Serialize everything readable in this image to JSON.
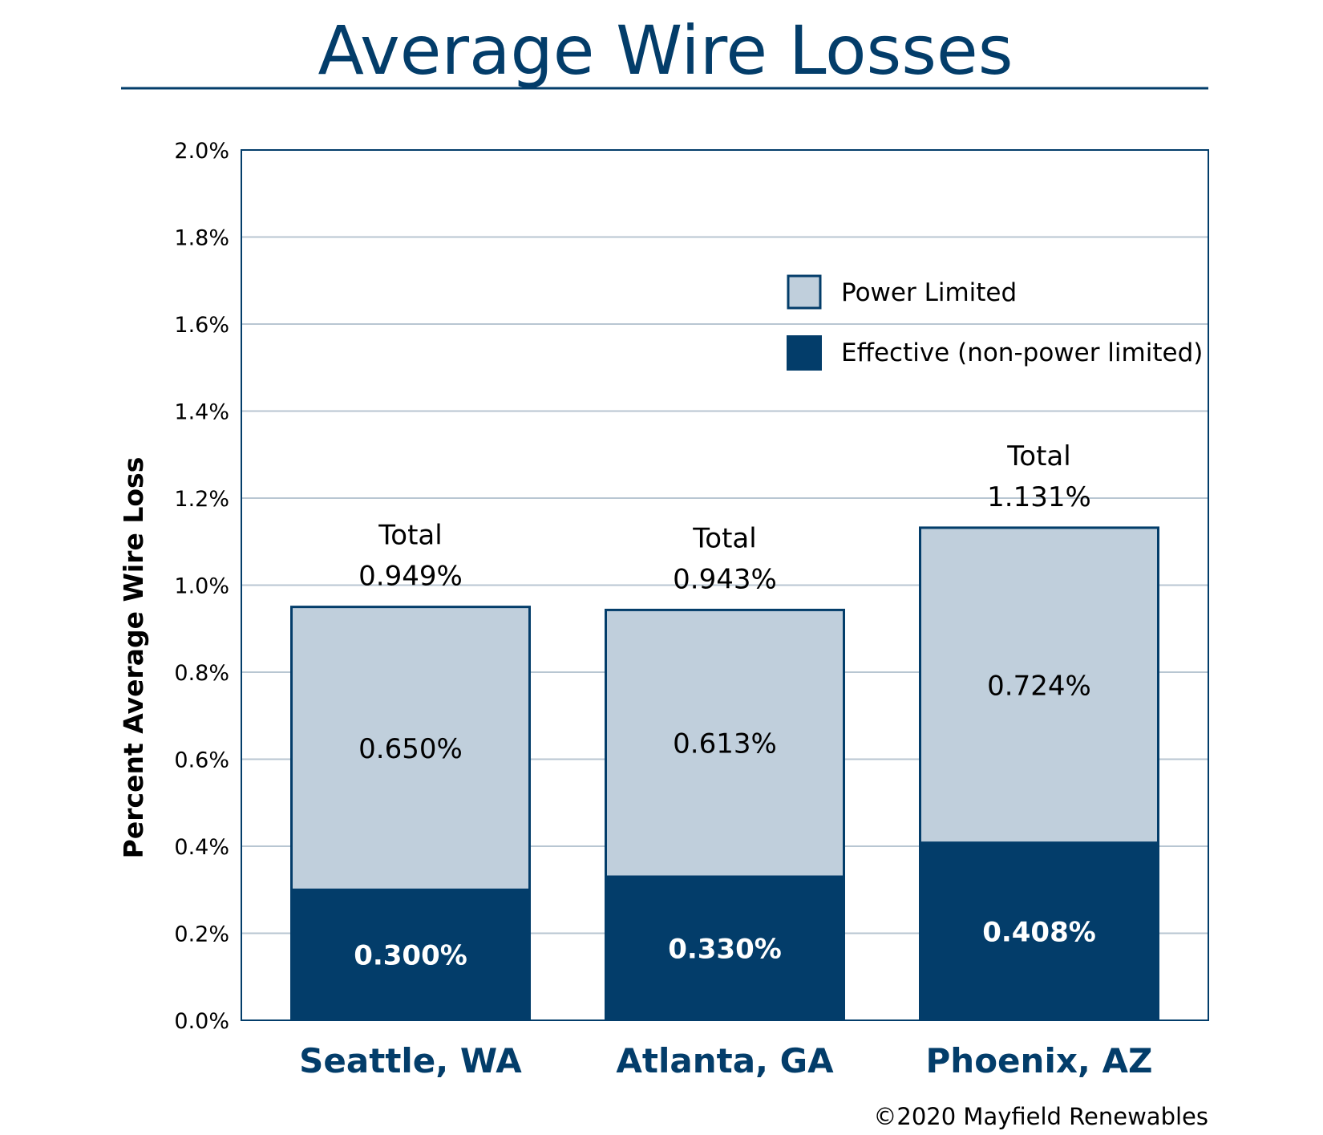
{
  "chart_data": {
    "type": "bar",
    "stacked": true,
    "title": "Average Wire Losses",
    "ylabel": "Percent Average Wire Loss",
    "xlabel": "",
    "ylim": [
      0,
      2.0
    ],
    "y_ticks": [
      "0.0%",
      "0.2%",
      "0.4%",
      "0.6%",
      "0.8%",
      "1.0%",
      "1.2%",
      "1.4%",
      "1.6%",
      "1.8%",
      "2.0%"
    ],
    "grid": true,
    "legend_position": "top-right",
    "categories": [
      "Seattle, WA",
      "Atlanta, GA",
      "Phoenix, AZ"
    ],
    "series": [
      {
        "name": "Effective (non-power limited)",
        "values": [
          0.3,
          0.33,
          0.408
        ],
        "labels": [
          "0.300%",
          "0.330%",
          "0.408%"
        ],
        "color": "#033d6a"
      },
      {
        "name": "Power Limited",
        "values": [
          0.65,
          0.613,
          0.724
        ],
        "labels": [
          "0.650%",
          "0.613%",
          "0.724%"
        ],
        "color": "#c0cfdc"
      }
    ],
    "totals": {
      "label": "Total",
      "values": [
        "0.949%",
        "0.943%",
        "1.131%"
      ],
      "numeric": [
        0.949,
        0.943,
        1.131
      ]
    },
    "legend": [
      "Power Limited",
      "Effective (non-power limited)"
    ]
  },
  "footer": {
    "copyright": "©2020 Mayfield Renewables"
  },
  "colors": {
    "navy": "#033d6a",
    "light": "#c0cfdc",
    "grid": "#b8c6d2"
  }
}
